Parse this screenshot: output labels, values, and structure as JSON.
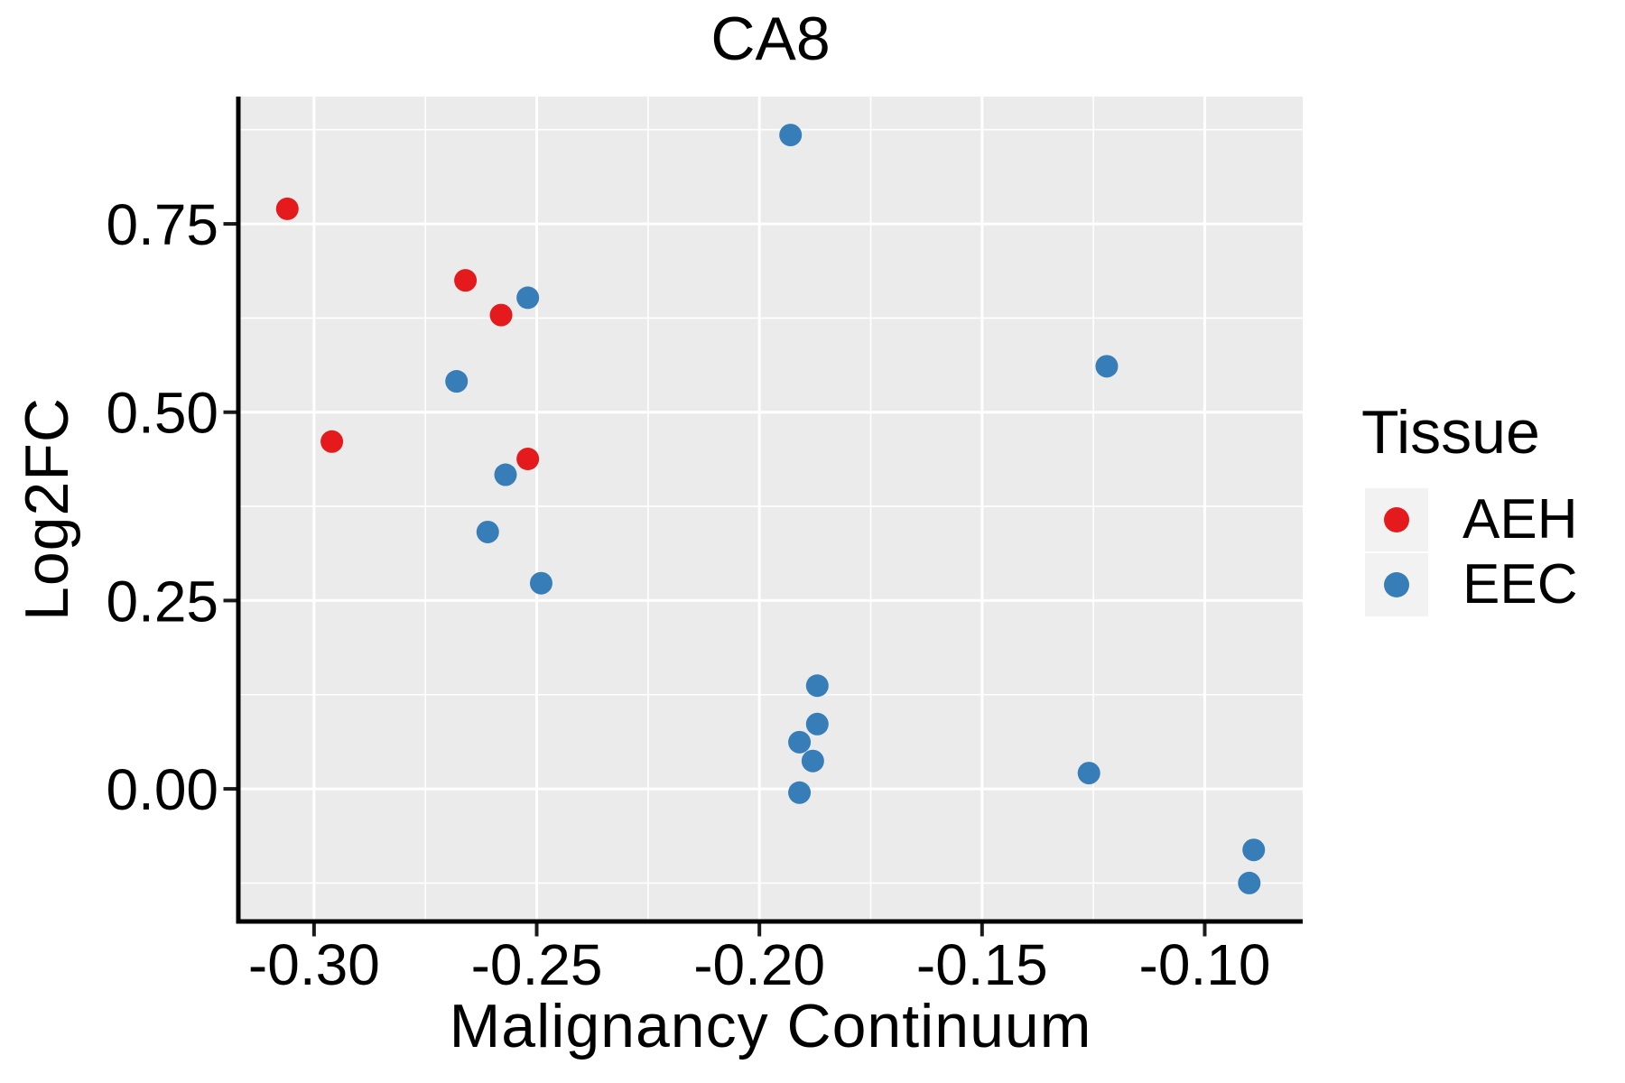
{
  "title": "CA8",
  "axes": {
    "x": {
      "title": "Malignancy Continuum",
      "tick_labels": [
        "-0.30",
        "-0.25",
        "-0.20",
        "-0.15",
        "-0.10"
      ],
      "tick_values": [
        -0.3,
        -0.25,
        -0.2,
        -0.15,
        -0.1
      ],
      "range": [
        -0.317,
        -0.078
      ]
    },
    "y": {
      "title": "Log2FC",
      "tick_labels": [
        "0.75",
        "0.50",
        "0.25",
        "0.00"
      ],
      "tick_values": [
        0.75,
        0.5,
        0.25,
        0.0
      ],
      "range": [
        -0.176,
        0.919
      ]
    }
  },
  "legend": {
    "title": "Tissue",
    "entries": [
      {
        "label": "AEH",
        "color": "#E41A1C"
      },
      {
        "label": "EEC",
        "color": "#377EB8"
      }
    ]
  },
  "colors": {
    "panel_background": "#EBEBEB",
    "grid": "#FFFFFF",
    "axis_line": "#000000",
    "tick": "#1A1A1A",
    "text": "#000000",
    "legend_key_background": "#F2F2F2",
    "page_background": "#FFFFFF"
  },
  "chart_data": {
    "type": "scatter",
    "title": "CA8",
    "xlabel": "Malignancy Continuum",
    "ylabel": "Log2FC",
    "xlim": [
      -0.317,
      -0.078
    ],
    "ylim": [
      -0.176,
      0.919
    ],
    "grid": true,
    "legend_position": "right",
    "point_radius_px": 12.5,
    "series": [
      {
        "name": "AEH",
        "color": "#E41A1C",
        "points": [
          [
            -0.306,
            0.77
          ],
          [
            -0.296,
            0.461
          ],
          [
            -0.266,
            0.675
          ],
          [
            -0.258,
            0.629
          ],
          [
            -0.252,
            0.438
          ]
        ]
      },
      {
        "name": "EEC",
        "color": "#377EB8",
        "points": [
          [
            -0.252,
            0.652
          ],
          [
            -0.268,
            0.541
          ],
          [
            -0.257,
            0.417
          ],
          [
            -0.261,
            0.341
          ],
          [
            -0.249,
            0.273
          ],
          [
            -0.193,
            0.868
          ],
          [
            -0.187,
            0.137
          ],
          [
            -0.187,
            0.086
          ],
          [
            -0.191,
            0.062
          ],
          [
            -0.188,
            0.037
          ],
          [
            -0.191,
            -0.005
          ],
          [
            -0.122,
            0.561
          ],
          [
            -0.126,
            0.021
          ],
          [
            -0.089,
            -0.081
          ],
          [
            -0.09,
            -0.125
          ]
        ]
      }
    ]
  }
}
